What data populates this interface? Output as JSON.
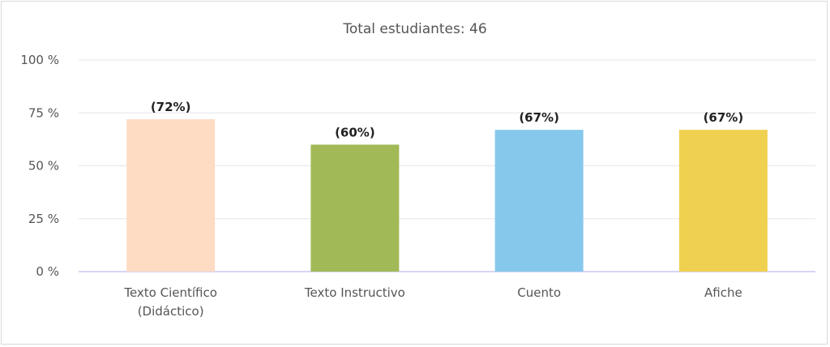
{
  "chart_data": {
    "type": "bar",
    "title": "Total estudiantes: 46",
    "categories": [
      [
        "Texto Científico",
        "(Didáctico)"
      ],
      [
        "Texto Instructivo"
      ],
      [
        "Cuento"
      ],
      [
        "Afiche"
      ]
    ],
    "values": [
      72,
      60,
      67,
      67
    ],
    "data_labels": [
      "(72%)",
      "(60%)",
      "(67%)",
      "(67%)"
    ],
    "colors": [
      "#fddcc3",
      "#a1b957",
      "#86c8ec",
      "#f0d050"
    ],
    "yticks": [
      "0 %",
      "25 %",
      "50 %",
      "75 %",
      "100 %"
    ],
    "ylim": [
      0,
      100
    ],
    "grid": true,
    "legend": "none"
  }
}
